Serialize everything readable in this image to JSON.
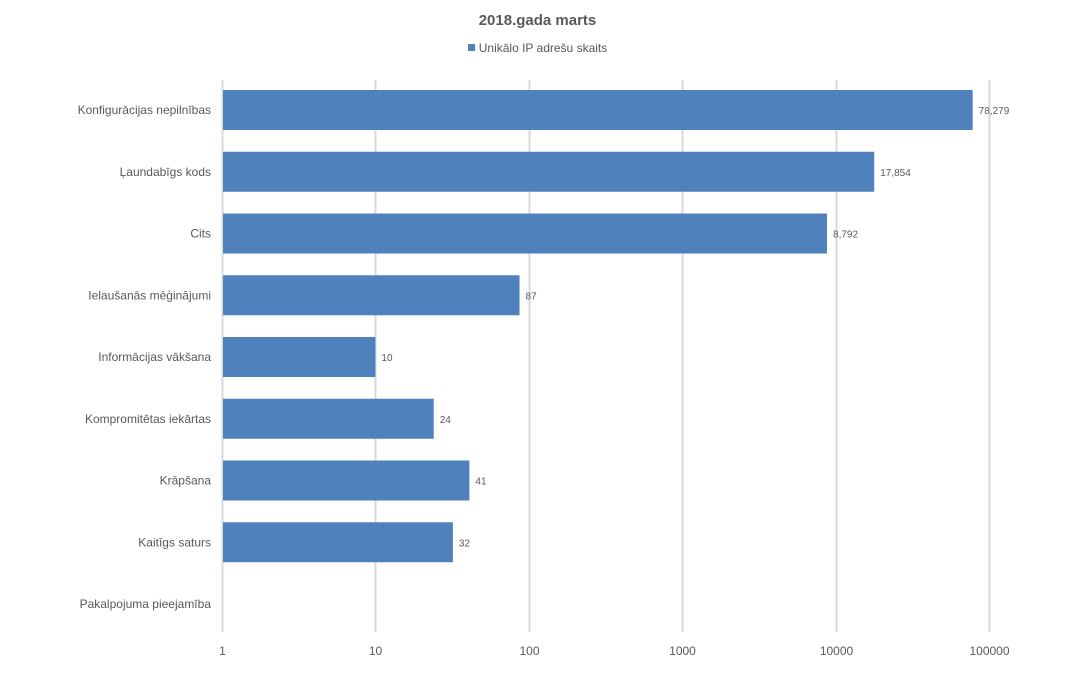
{
  "chart_data": {
    "type": "bar",
    "orientation": "horizontal",
    "title": "2018.gada marts",
    "x_scale": "log",
    "xlim": [
      1,
      100000
    ],
    "x_ticks": [
      "1",
      "10",
      "100",
      "1000",
      "10000",
      "100000"
    ],
    "x_tick_values": [
      1,
      10,
      100,
      1000,
      10000,
      100000
    ],
    "gridlines": "vertical",
    "legend_position": "top",
    "categories": [
      "Konfigurācijas nepilnības",
      "Ļaundabīgs kods",
      "Cits",
      "Ielaušanās mēģinājumi",
      "Informācijas vākšana",
      "Kompromitētas iekārtas",
      "Krāpšana",
      "Kaitīgs saturs",
      "Pakalpojuma pieejamība"
    ],
    "series": [
      {
        "name": "Unikālo IP adrešu skaits",
        "color": "#4f81bd",
        "values": [
          78279,
          17854,
          8792,
          87,
          10,
          24,
          41,
          32,
          null
        ],
        "data_labels": [
          "78,279",
          "17,854",
          "8,792",
          "87",
          "10",
          "24",
          "41",
          "32",
          ""
        ]
      }
    ]
  }
}
